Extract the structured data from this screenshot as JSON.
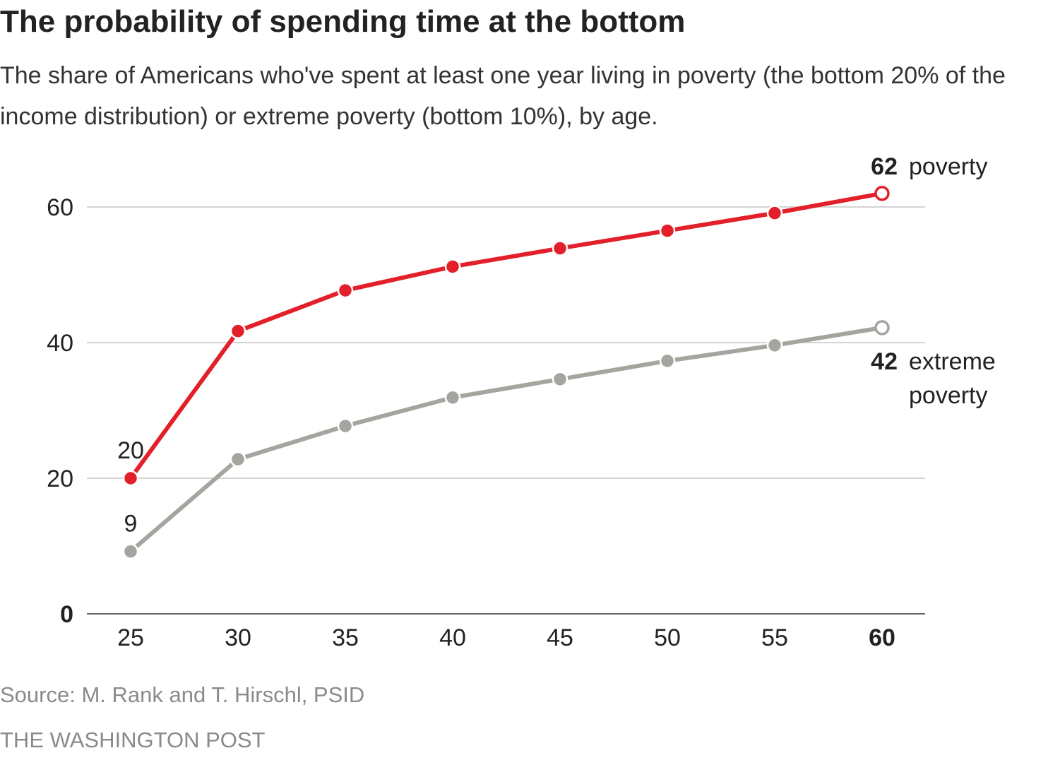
{
  "title": "The probability of spending time at the bottom",
  "subtitle": "The share of Americans who've spent at least one year living in poverty (the bottom 20% of the income distribution) or extreme poverty (bottom 10%), by age.",
  "source": "Source: M. Rank and T. Hirschl, PSID",
  "credit": "THE WASHINGTON POST",
  "colors": {
    "poverty": "#e3202a",
    "extreme_poverty": "#a5a5a0",
    "grid": "#d4d4d4",
    "axis": "#666666",
    "text": "#222222"
  },
  "chart_data": {
    "type": "line",
    "title": "The probability of spending time at the bottom",
    "subtitle": "The share of Americans who've spent at least one year living in poverty (the bottom 20% of the income distribution) or extreme poverty (bottom 10%), by age.",
    "xlabel": "",
    "ylabel": "",
    "x": [
      25,
      30,
      35,
      40,
      45,
      50,
      55,
      60
    ],
    "x_tick_labels": [
      "25",
      "30",
      "35",
      "40",
      "45",
      "50",
      "55",
      "60"
    ],
    "highlighted_x_tick": "60",
    "y_tick_labels": [
      "0",
      "20",
      "40",
      "60"
    ],
    "y_ticks": [
      0,
      20,
      40,
      60
    ],
    "ylim": [
      0,
      62
    ],
    "grid": true,
    "series": [
      {
        "name": "poverty",
        "color": "#e3202a",
        "values": [
          20,
          41.7,
          47.7,
          51.2,
          53.9,
          56.5,
          59.1,
          62
        ],
        "start_label": "20",
        "end_label_value": "62",
        "end_label_text": "poverty"
      },
      {
        "name": "extreme poverty",
        "color": "#a5a5a0",
        "values": [
          9.2,
          22.8,
          27.7,
          31.9,
          34.6,
          37.3,
          39.6,
          42.2
        ],
        "start_label": "9",
        "end_label_value": "42",
        "end_label_text_lines": [
          "extreme",
          "poverty"
        ]
      }
    ]
  }
}
